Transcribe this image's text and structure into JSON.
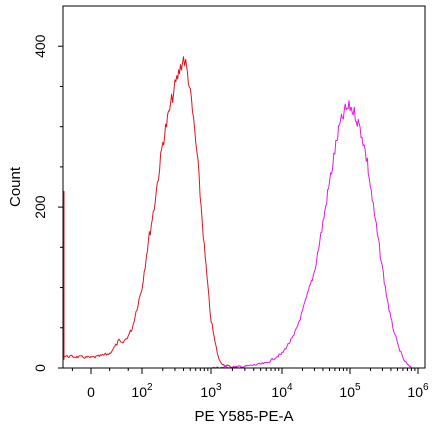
{
  "chart_data": {
    "type": "line",
    "title": "",
    "xlabel": "PE Y585-PE-A",
    "ylabel": "Count",
    "x_scale": "biexponential",
    "ylim": [
      0,
      450
    ],
    "y_ticks": [
      {
        "value": 0,
        "label": "0"
      },
      {
        "value": 200,
        "label": "200"
      },
      {
        "value": 400,
        "label": "400"
      }
    ],
    "x_ticks": [
      {
        "value": 0,
        "base": "0",
        "exp": ""
      },
      {
        "value": 100,
        "base": "10",
        "exp": "2"
      },
      {
        "value": 1000,
        "base": "10",
        "exp": "3"
      },
      {
        "value": 10000,
        "base": "10",
        "exp": "4"
      },
      {
        "value": 100000,
        "base": "10",
        "exp": "5"
      },
      {
        "value": 1000000,
        "base": "10",
        "exp": "6"
      }
    ],
    "grid": false,
    "series": [
      {
        "color": "#e0141c",
        "points": [
          [
            -200,
            220
          ],
          [
            -190,
            20
          ],
          [
            -150,
            14
          ],
          [
            -100,
            12
          ],
          [
            -50,
            15
          ],
          [
            0,
            13
          ],
          [
            10,
            14
          ],
          [
            20,
            16
          ],
          [
            30,
            18
          ],
          [
            40,
            28
          ],
          [
            45,
            34
          ],
          [
            50,
            30
          ],
          [
            60,
            40
          ],
          [
            70,
            50
          ],
          [
            80,
            70
          ],
          [
            100,
            100
          ],
          [
            120,
            150
          ],
          [
            150,
            200
          ],
          [
            180,
            250
          ],
          [
            200,
            280
          ],
          [
            250,
            320
          ],
          [
            300,
            350
          ],
          [
            350,
            370
          ],
          [
            400,
            385
          ],
          [
            430,
            378
          ],
          [
            470,
            360
          ],
          [
            520,
            330
          ],
          [
            580,
            295
          ],
          [
            650,
            250
          ],
          [
            720,
            200
          ],
          [
            800,
            150
          ],
          [
            900,
            100
          ],
          [
            1000,
            60
          ],
          [
            1150,
            30
          ],
          [
            1300,
            10
          ],
          [
            1500,
            4
          ],
          [
            2000,
            1
          ],
          [
            3000,
            0
          ]
        ]
      },
      {
        "color": "#e418e4",
        "points": [
          [
            1000,
            0
          ],
          [
            3000,
            2
          ],
          [
            6000,
            6
          ],
          [
            10000,
            18
          ],
          [
            15000,
            40
          ],
          [
            20000,
            70
          ],
          [
            30000,
            120
          ],
          [
            40000,
            180
          ],
          [
            50000,
            230
          ],
          [
            60000,
            270
          ],
          [
            70000,
            300
          ],
          [
            85000,
            320
          ],
          [
            100000,
            325
          ],
          [
            120000,
            315
          ],
          [
            150000,
            290
          ],
          [
            180000,
            255
          ],
          [
            220000,
            200
          ],
          [
            270000,
            150
          ],
          [
            330000,
            100
          ],
          [
            400000,
            60
          ],
          [
            500000,
            30
          ],
          [
            600000,
            12
          ],
          [
            700000,
            4
          ],
          [
            800000,
            0
          ]
        ]
      }
    ]
  }
}
